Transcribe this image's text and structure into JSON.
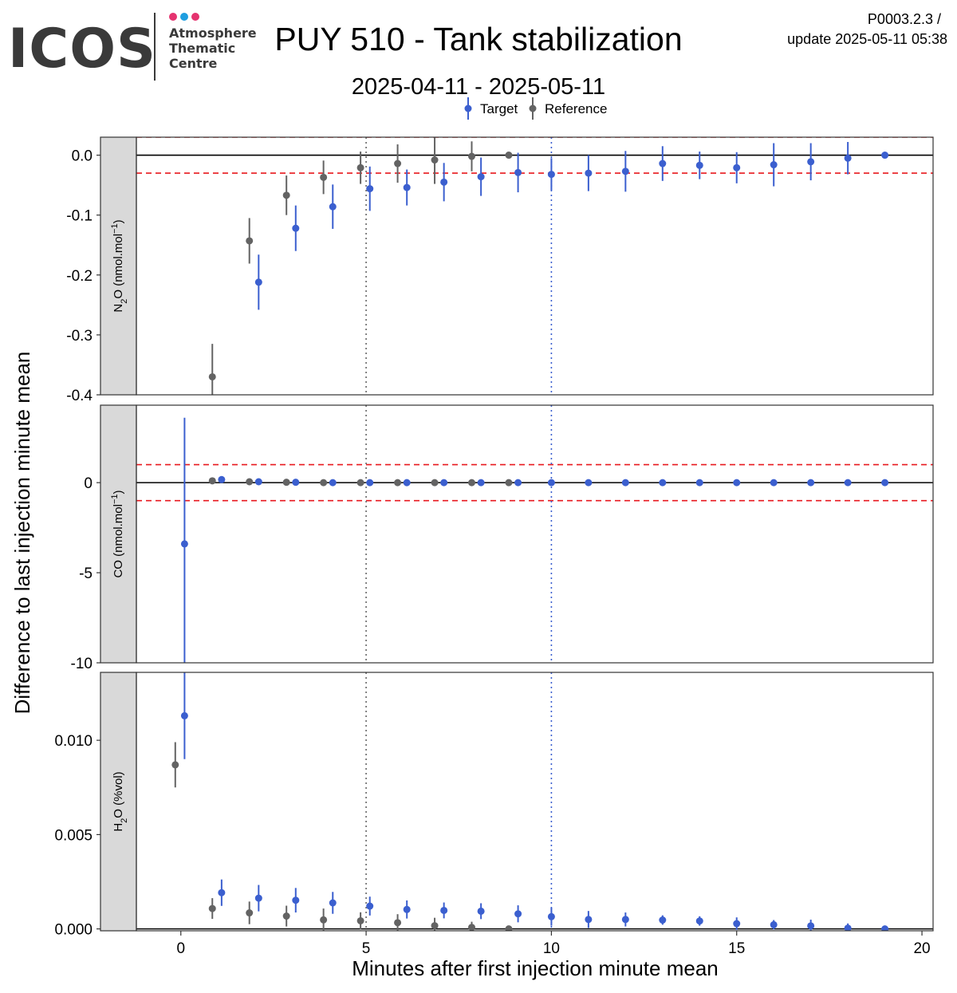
{
  "header": {
    "logo_text": "ICOS",
    "logo_sub": [
      "Atmosphere",
      "Thematic",
      "Centre"
    ],
    "title": "PUY 510 - Tank stabilization",
    "subtitle": "2025-04-11 - 2025-05-11",
    "version": "P0003.2.3 /",
    "update": "update  2025-05-11 05:38"
  },
  "legend": {
    "target": "Target",
    "reference": "Reference"
  },
  "colors": {
    "target": "#3b5fcf",
    "reference": "#636363",
    "tolerance": "#e8191f",
    "logo_dark": "#3a3a3a",
    "logo_pink": "#e5336f",
    "logo_blue": "#1e9ee0"
  },
  "chart_data": {
    "type": "scatter",
    "xlabel": "Minutes after first injection minute mean",
    "ylabel": "Difference to last injection minute mean",
    "xlim": [
      -1.2,
      20.3
    ],
    "xticks": [
      0,
      5,
      10,
      15,
      20
    ],
    "vlines": [
      5,
      10
    ],
    "panels": [
      {
        "strip": "N2O (nmol.mol-1)",
        "ylim": [
          -0.4,
          0.03
        ],
        "yticks": [
          0.0,
          -0.1,
          -0.2,
          -0.3,
          -0.4
        ],
        "ytick_labels": [
          "0.0",
          "-0.1",
          "-0.2",
          "-0.3",
          "-0.4"
        ],
        "tolerance": [
          0.03,
          -0.03
        ],
        "reference": {
          "x": [
            0.85,
            1.85,
            2.85,
            3.85,
            4.85,
            5.85,
            6.85,
            7.85,
            8.85
          ],
          "y": [
            -0.37,
            -0.143,
            -0.067,
            -0.037,
            -0.021,
            -0.014,
            -0.008,
            -0.002,
            0.0
          ],
          "err": [
            0.055,
            0.038,
            0.033,
            0.028,
            0.027,
            0.032,
            0.04,
            0.025,
            0.0
          ]
        },
        "target": {
          "x": [
            2.1,
            3.1,
            4.1,
            5.1,
            6.1,
            7.1,
            8.1,
            9.1,
            10.0,
            11.0,
            12.0,
            13.0,
            14.0,
            15.0,
            16.0,
            17.0,
            18.0,
            19.0
          ],
          "y": [
            -0.212,
            -0.122,
            -0.086,
            -0.056,
            -0.054,
            -0.045,
            -0.036,
            -0.029,
            -0.032,
            -0.03,
            -0.027,
            -0.014,
            -0.017,
            -0.021,
            -0.016,
            -0.011,
            -0.005,
            0.0
          ],
          "err": [
            0.046,
            0.038,
            0.037,
            0.037,
            0.03,
            0.032,
            0.032,
            0.033,
            0.027,
            0.03,
            0.034,
            0.029,
            0.023,
            0.026,
            0.036,
            0.031,
            0.027,
            0.0
          ]
        }
      },
      {
        "strip": "CO (nmol.mol-1)",
        "ylim": [
          -10,
          4.3
        ],
        "yticks": [
          0,
          -5,
          -10
        ],
        "ytick_labels": [
          "0",
          "-5",
          "-10"
        ],
        "tolerance": [
          1,
          -1
        ],
        "reference": {
          "x": [
            0.85,
            1.85,
            2.85,
            3.85,
            4.85,
            5.85,
            6.85,
            7.85,
            8.85
          ],
          "y": [
            0.1,
            0.05,
            0.02,
            0.0,
            0.0,
            0.0,
            0.0,
            0.0,
            0.0
          ],
          "err": [
            0.05,
            0.04,
            0.03,
            0.03,
            0.03,
            0.03,
            0.03,
            0.03,
            0.0
          ]
        },
        "target": {
          "x": [
            0.1,
            1.1,
            2.1,
            3.1,
            4.1,
            5.1,
            6.1,
            7.1,
            8.1,
            9.1,
            10.0,
            11.0,
            12.0,
            13.0,
            14.0,
            15.0,
            16.0,
            17.0,
            18.0,
            19.0
          ],
          "y": [
            -3.4,
            0.17,
            0.05,
            0.02,
            0.0,
            0.0,
            0.0,
            0.0,
            0.0,
            0.0,
            0.0,
            0.0,
            0.0,
            0.0,
            0.0,
            0.0,
            0.0,
            0.0,
            0.0,
            0.0
          ],
          "err": [
            7.0,
            0.1,
            0.06,
            0.04,
            0.04,
            0.03,
            0.03,
            0.03,
            0.03,
            0.03,
            0.03,
            0.02,
            0.02,
            0.02,
            0.02,
            0.02,
            0.02,
            0.02,
            0.02,
            0.0
          ]
        }
      },
      {
        "strip": "H2O (%vol)",
        "ylim": [
          -0.0001,
          0.0136
        ],
        "yticks": [
          0.0,
          0.005,
          0.01
        ],
        "ytick_labels": [
          "0.000",
          "0.005",
          "0.010"
        ],
        "tolerance": [],
        "reference": {
          "x": [
            -0.15,
            0.85,
            1.85,
            2.85,
            3.85,
            4.85,
            5.85,
            6.85,
            7.85,
            8.85
          ],
          "y": [
            0.0087,
            0.00108,
            0.00085,
            0.00068,
            0.00048,
            0.00043,
            0.00033,
            0.00017,
            8e-05,
            0.0
          ],
          "err": [
            0.0012,
            0.00055,
            0.0006,
            0.00055,
            0.0006,
            0.00045,
            0.00045,
            0.00042,
            0.0003,
            0.0
          ]
        },
        "target": {
          "x": [
            0.1,
            1.1,
            2.1,
            3.1,
            4.1,
            5.1,
            6.1,
            7.1,
            8.1,
            9.1,
            10.0,
            11.0,
            12.0,
            13.0,
            14.0,
            15.0,
            16.0,
            17.0,
            18.0,
            19.0
          ],
          "y": [
            0.0113,
            0.00192,
            0.00163,
            0.00152,
            0.00138,
            0.00121,
            0.00103,
            0.00098,
            0.00094,
            0.0008,
            0.00065,
            0.0005,
            0.0005,
            0.00047,
            0.00042,
            0.00028,
            0.00022,
            0.00016,
            4e-05,
            0.0
          ],
          "err": [
            0.0023,
            0.0007,
            0.0007,
            0.00065,
            0.00058,
            0.0005,
            0.00048,
            0.00042,
            0.00042,
            0.00045,
            0.00048,
            0.00045,
            0.00037,
            0.00025,
            0.00025,
            0.00033,
            0.00025,
            0.00033,
            0.00025,
            0.0
          ]
        }
      }
    ]
  }
}
